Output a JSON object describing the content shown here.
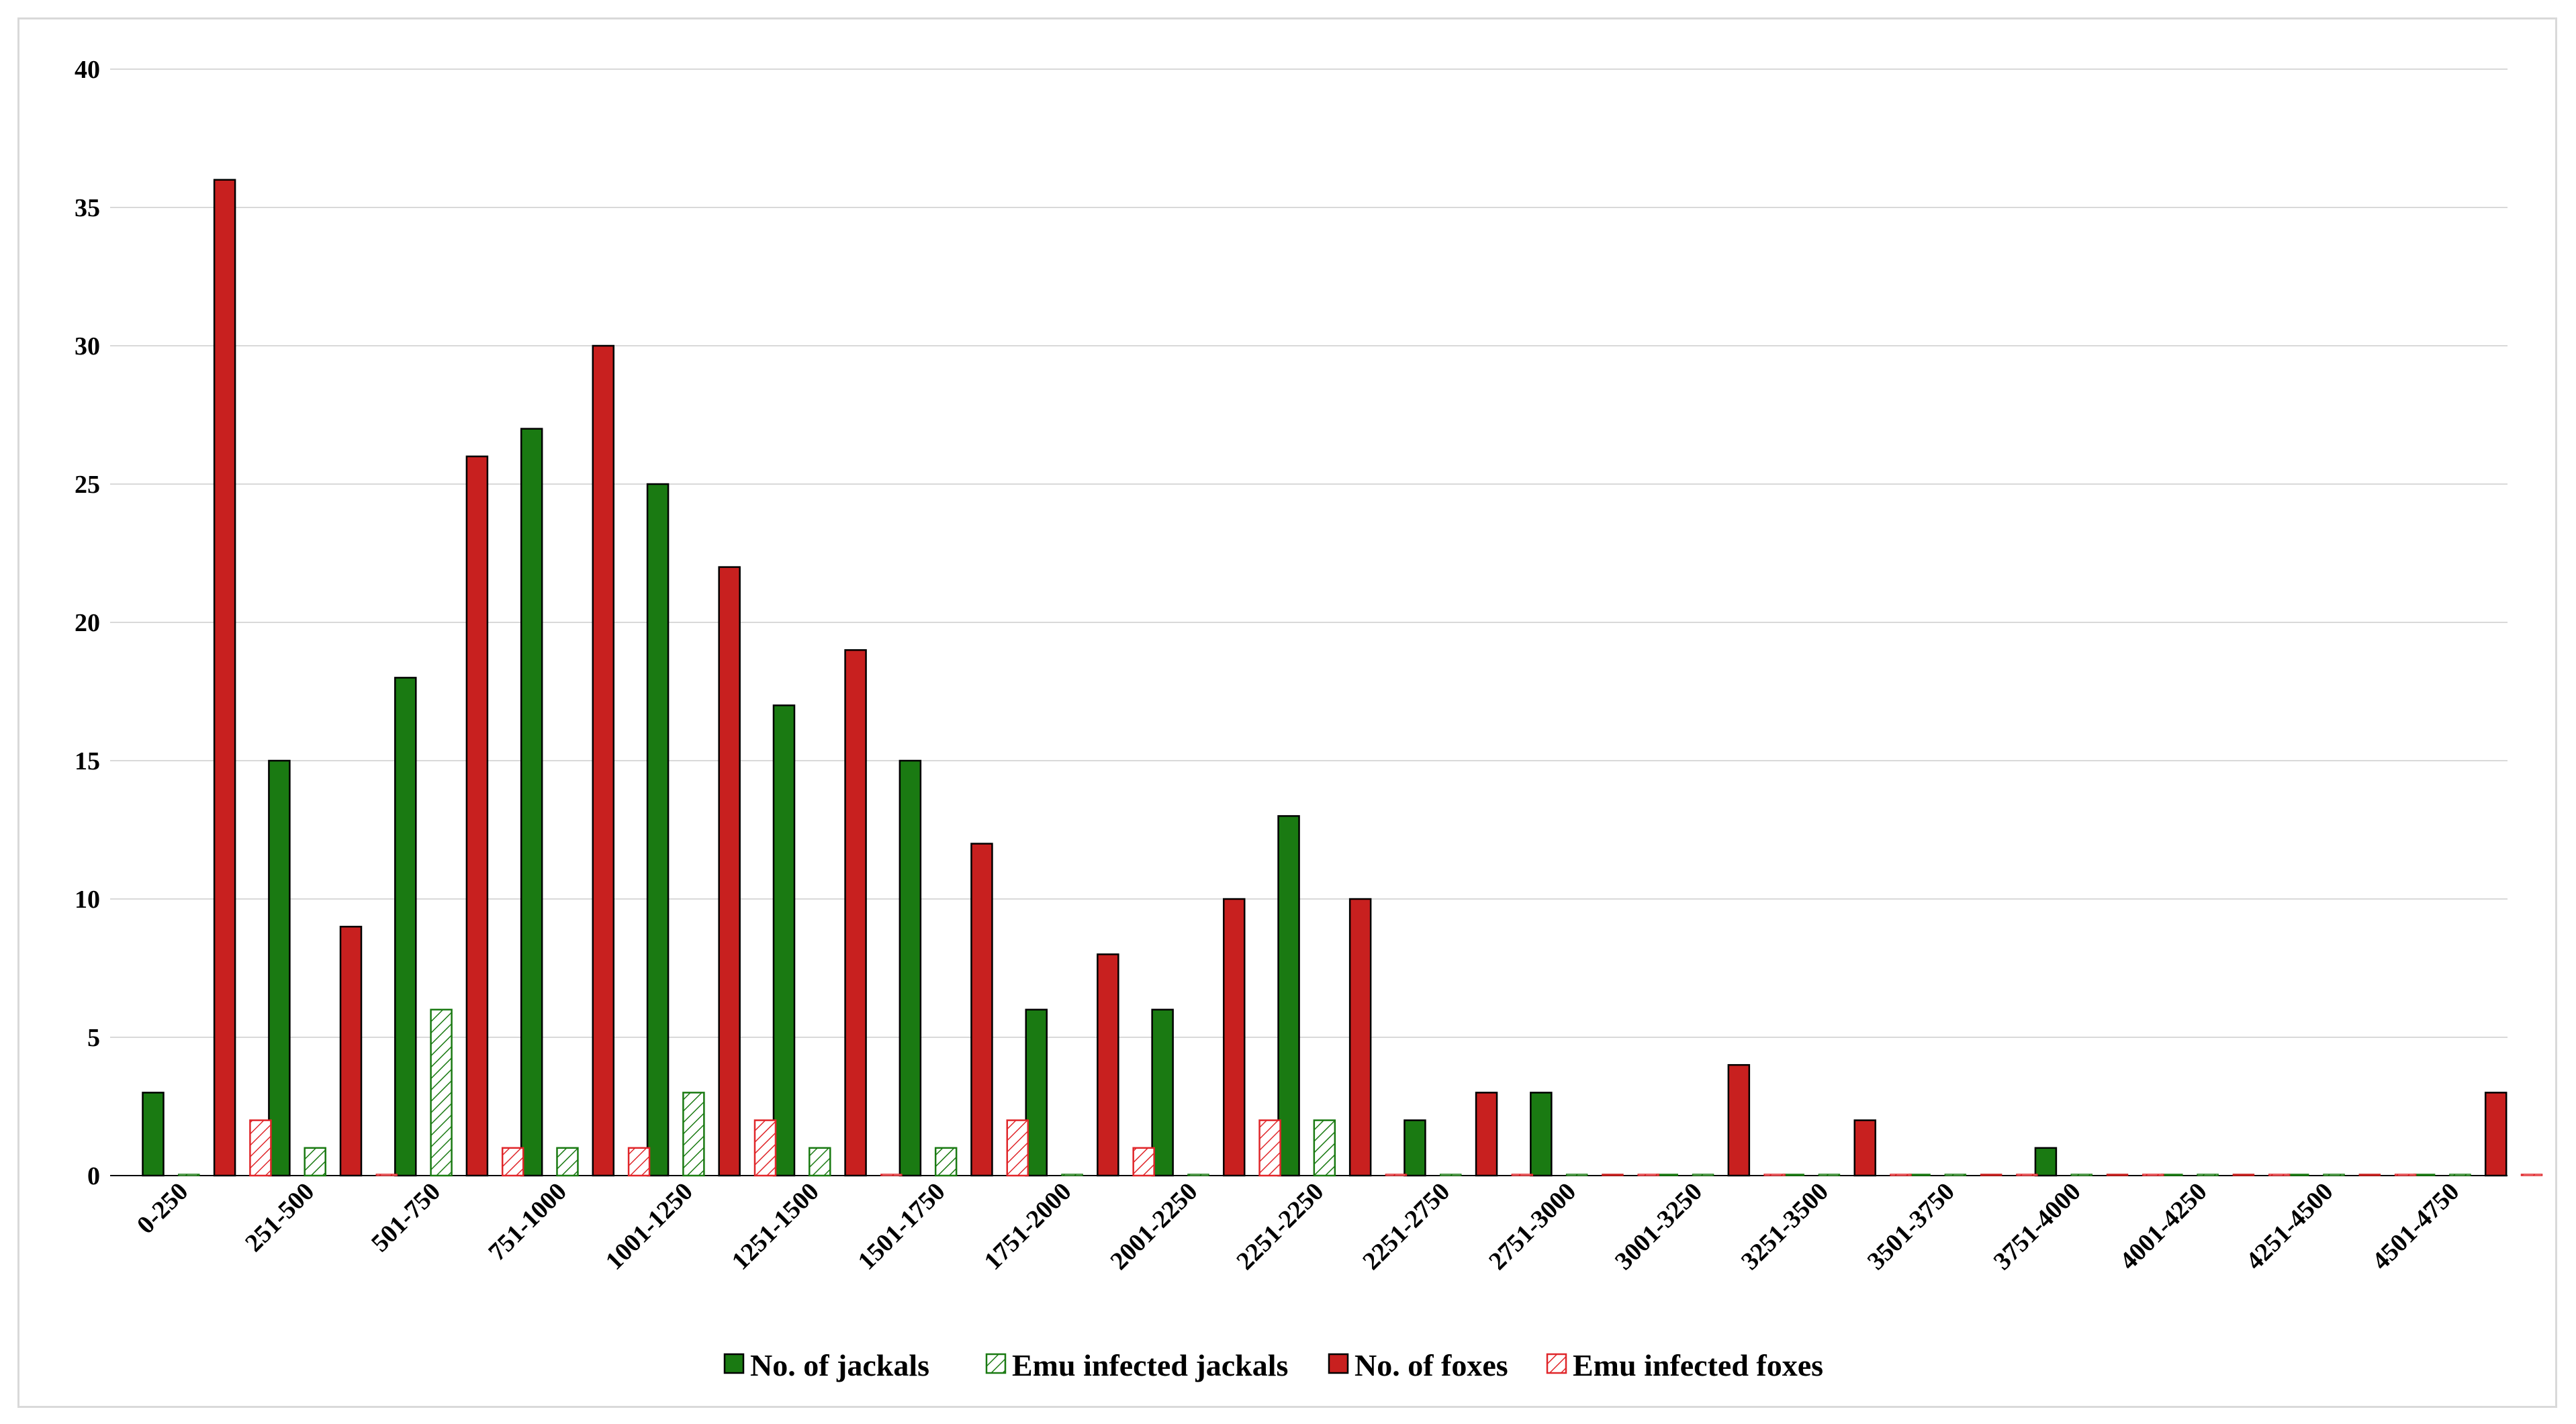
{
  "chart_data": {
    "type": "bar",
    "categories": [
      "0-250",
      "251-500",
      "501-750",
      "751-1000",
      "1001-1250",
      "1251-1500",
      "1501-1750",
      "1751-2000",
      "2001-2250",
      "2251-2250",
      "2251-2750",
      "2751-3000",
      "3001-3250",
      "3251-3500",
      "3501-3750",
      "3751-4000",
      "4001-4250",
      "4251-4500",
      "4501-4750"
    ],
    "series": [
      {
        "name": "No. of jackals",
        "style": "solid",
        "color": "#1a7a12",
        "values": [
          3,
          15,
          18,
          27,
          25,
          17,
          15,
          6,
          6,
          13,
          2,
          3,
          0,
          0,
          0,
          1,
          0,
          0,
          0
        ]
      },
      {
        "name": "Emu infected jackals",
        "style": "hatched",
        "color": "#1a7a12",
        "values": [
          0,
          1,
          6,
          1,
          3,
          1,
          1,
          0,
          0,
          2,
          0,
          0,
          0,
          0,
          0,
          0,
          0,
          0,
          0
        ]
      },
      {
        "name": "No. of foxes",
        "style": "solid",
        "color": "#c8201f",
        "values": [
          36,
          9,
          26,
          30,
          22,
          19,
          12,
          8,
          10,
          10,
          3,
          0,
          4,
          2,
          0,
          0,
          0,
          0,
          3
        ]
      },
      {
        "name": "Emu infected foxes",
        "style": "hatched",
        "color": "#e0262a",
        "values": [
          2,
          0,
          1,
          1,
          2,
          0,
          2,
          1,
          2,
          0,
          0,
          0,
          0,
          0,
          0,
          0,
          0,
          0,
          0
        ]
      }
    ],
    "yticks": [
      "0",
      "5",
      "10",
      "15",
      "20",
      "25",
      "30",
      "35",
      "40"
    ],
    "ylim": [
      0,
      40
    ],
    "title": "",
    "xlabel": "",
    "ylabel": "",
    "grid": true,
    "legend_position": "bottom"
  }
}
